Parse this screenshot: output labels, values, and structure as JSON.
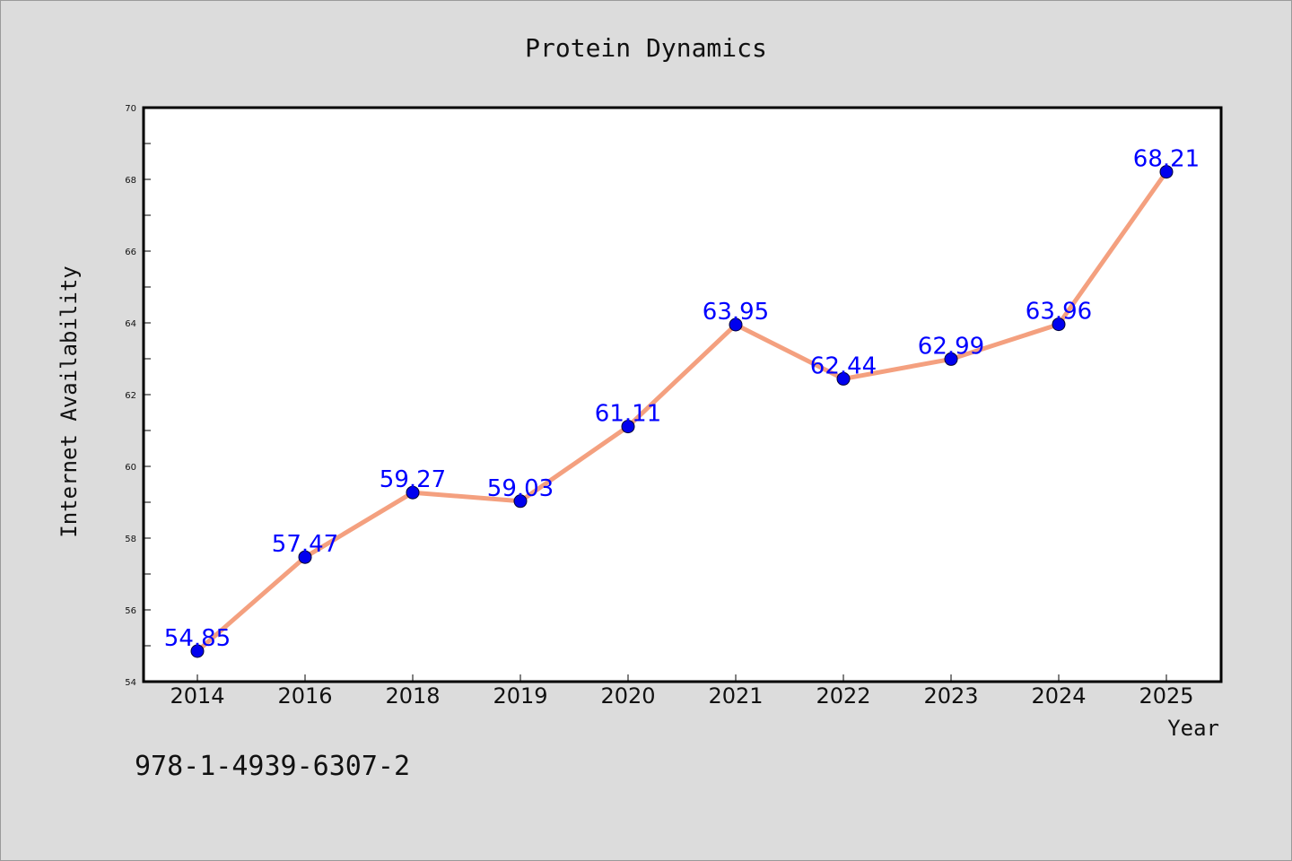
{
  "chart_data": {
    "type": "line",
    "title": "Protein Dynamics",
    "xlabel": "Year",
    "ylabel": "Internet Availability",
    "categories": [
      "2014",
      "2016",
      "2018",
      "2019",
      "2020",
      "2021",
      "2022",
      "2023",
      "2024",
      "2025"
    ],
    "series": [
      {
        "values": [
          54.85,
          57.47,
          59.27,
          59.03,
          61.11,
          63.95,
          62.44,
          62.99,
          63.96,
          68.21
        ],
        "line_color": "#f4a07f",
        "marker_color": "#0000ee",
        "label_color": "#0000ff"
      }
    ],
    "ylim": [
      54,
      70
    ],
    "yticks": [
      54,
      56,
      58,
      60,
      62,
      64,
      66,
      68,
      70
    ],
    "grid": false,
    "legend": "none",
    "data_labels": true
  },
  "annotation": {
    "text": "978-1-4939-6307-2"
  }
}
